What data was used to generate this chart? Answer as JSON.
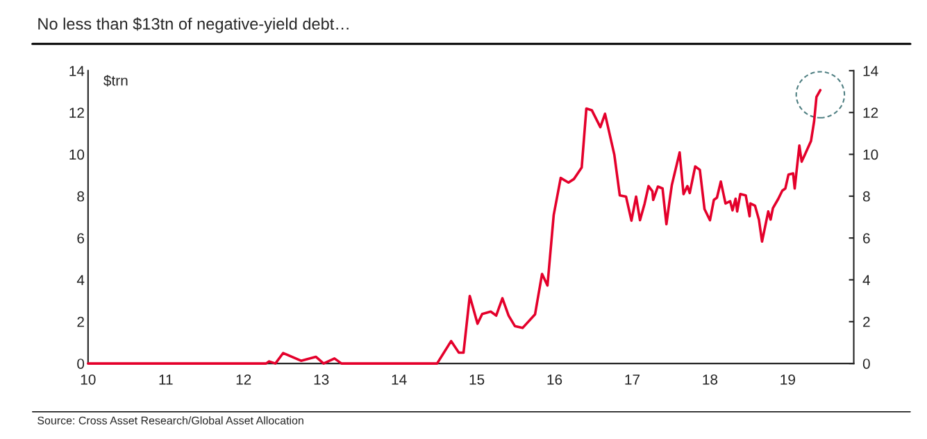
{
  "chart_data": {
    "type": "line",
    "title": "No less than $13tn of negative-yield debt…",
    "ylabel": "$trn",
    "annotations": [
      "Source: Cross Asset Research/Global Asset Allocation"
    ],
    "xlim": [
      10,
      19.85
    ],
    "xticks": [
      {
        "value": 10,
        "label": "10"
      },
      {
        "value": 11,
        "label": "11"
      },
      {
        "value": 12,
        "label": "12"
      },
      {
        "value": 13,
        "label": "13"
      },
      {
        "value": 14,
        "label": "14"
      },
      {
        "value": 15,
        "label": "15"
      },
      {
        "value": 16,
        "label": "16"
      },
      {
        "value": 17,
        "label": "17"
      },
      {
        "value": 18,
        "label": "18"
      },
      {
        "value": 19,
        "label": "19"
      }
    ],
    "ylim": [
      0,
      14
    ],
    "yticks": [
      0,
      2,
      4,
      6,
      8,
      10,
      12,
      14
    ],
    "y2lim": [
      0,
      14
    ],
    "y2ticks": [
      0,
      2,
      4,
      6,
      8,
      10,
      12,
      14
    ],
    "grid": false,
    "legend": false,
    "marker": "none",
    "line_style": "solid",
    "series": [
      {
        "color": "#e4002b",
        "x": [
          10,
          12.29,
          12.33,
          12.41,
          12.51,
          12.74,
          12.93,
          13.03,
          13.17,
          13.26,
          14.49,
          14.67,
          14.77,
          14.83,
          14.91,
          15.01,
          15.07,
          15.18,
          15.25,
          15.33,
          15.41,
          15.49,
          15.59,
          15.75,
          15.84,
          15.91,
          15.99,
          16.08,
          16.18,
          16.25,
          16.35,
          16.41,
          16.48,
          16.59,
          16.65,
          16.77,
          16.84,
          16.92,
          16.99,
          17.05,
          17.1,
          17.16,
          17.21,
          17.26,
          17.27,
          17.33,
          17.39,
          17.44,
          17.48,
          17.51,
          17.61,
          17.66,
          17.71,
          17.74,
          17.81,
          17.87,
          17.93,
          18.0,
          18.05,
          18.09,
          18.14,
          18.2,
          18.26,
          18.29,
          18.33,
          18.35,
          18.39,
          18.46,
          18.51,
          18.52,
          18.58,
          18.63,
          18.67,
          18.75,
          18.78,
          18.81,
          18.88,
          18.93,
          18.97,
          19.01,
          19.07,
          19.09,
          19.15,
          19.18,
          19.22,
          19.3,
          19.34,
          19.37,
          19.42
        ],
        "values": [
          0,
          0,
          0.1,
          0,
          0.5,
          0.13,
          0.32,
          0,
          0.24,
          0,
          0,
          1.07,
          0.52,
          0.52,
          3.23,
          1.9,
          2.37,
          2.48,
          2.29,
          3.12,
          2.29,
          1.79,
          1.7,
          2.35,
          4.28,
          3.73,
          7.1,
          8.87,
          8.65,
          8.82,
          9.37,
          12.19,
          12.11,
          11.3,
          11.94,
          9.98,
          8.04,
          7.98,
          6.83,
          7.98,
          6.85,
          7.65,
          8.48,
          8.23,
          7.82,
          8.46,
          8.37,
          6.66,
          7.76,
          8.54,
          10.09,
          8.1,
          8.48,
          8.15,
          9.42,
          9.26,
          7.38,
          6.85,
          7.82,
          7.93,
          8.7,
          7.65,
          7.76,
          7.32,
          7.88,
          7.27,
          8.1,
          8.04,
          7.04,
          7.65,
          7.54,
          6.88,
          5.83,
          7.27,
          6.88,
          7.43,
          7.88,
          8.26,
          8.37,
          9.03,
          9.09,
          8.37,
          10.42,
          9.65,
          9.98,
          10.64,
          11.58,
          12.74,
          13.07
        ]
      }
    ]
  }
}
